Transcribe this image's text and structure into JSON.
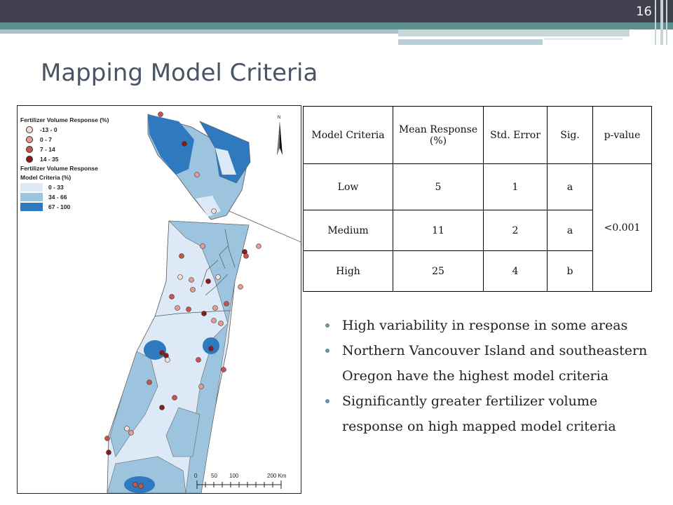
{
  "slide": {
    "number": "16",
    "title": "Mapping Model Criteria"
  },
  "colors": {
    "header_dark": "#40404f",
    "header_teal": "#5d8f8e",
    "class_low": "#dde9f6",
    "class_mid": "#9dc4de",
    "class_high": "#2f7abf",
    "bullet": "#6e8fa0"
  },
  "legend": {
    "points_title": "Fertilizer Volume Response (%)",
    "points": [
      {
        "label": "-13 - 0",
        "color": "#f6dcd5"
      },
      {
        "label": "0 - 7",
        "color": "#e59c92"
      },
      {
        "label": "7 - 14",
        "color": "#c9544d"
      },
      {
        "label": "14 - 35",
        "color": "#8b1a1a"
      }
    ],
    "areas_title_1": "Fertilizer Volume Response",
    "areas_title_2": "Model Criteria (%)",
    "areas": [
      {
        "label": "0 - 33",
        "color": "#dde9f6"
      },
      {
        "label": "34 - 66",
        "color": "#9dc4de"
      },
      {
        "label": "67 - 100",
        "color": "#2f7abf"
      }
    ]
  },
  "map": {
    "north_label": "N",
    "scale": [
      "0",
      "50",
      "100",
      "200 Km"
    ]
  },
  "table": {
    "headers": [
      "Model Criteria",
      "Mean Response (%)",
      "Std. Error",
      "Sig.",
      "p-value"
    ],
    "rows": [
      {
        "criteria": "Low",
        "mean": "5",
        "se": "1",
        "sig": "a"
      },
      {
        "criteria": "Medium",
        "mean": "11",
        "se": "2",
        "sig": "a"
      },
      {
        "criteria": "High",
        "mean": "25",
        "se": "4",
        "sig": "b"
      }
    ],
    "p_value": "<0.001"
  },
  "bullets": [
    "High variability in response in some areas",
    "Northern Vancouver Island and southeastern Oregon have the highest model criteria",
    "Significantly greater fertilizer volume response on high mapped model criteria"
  ]
}
